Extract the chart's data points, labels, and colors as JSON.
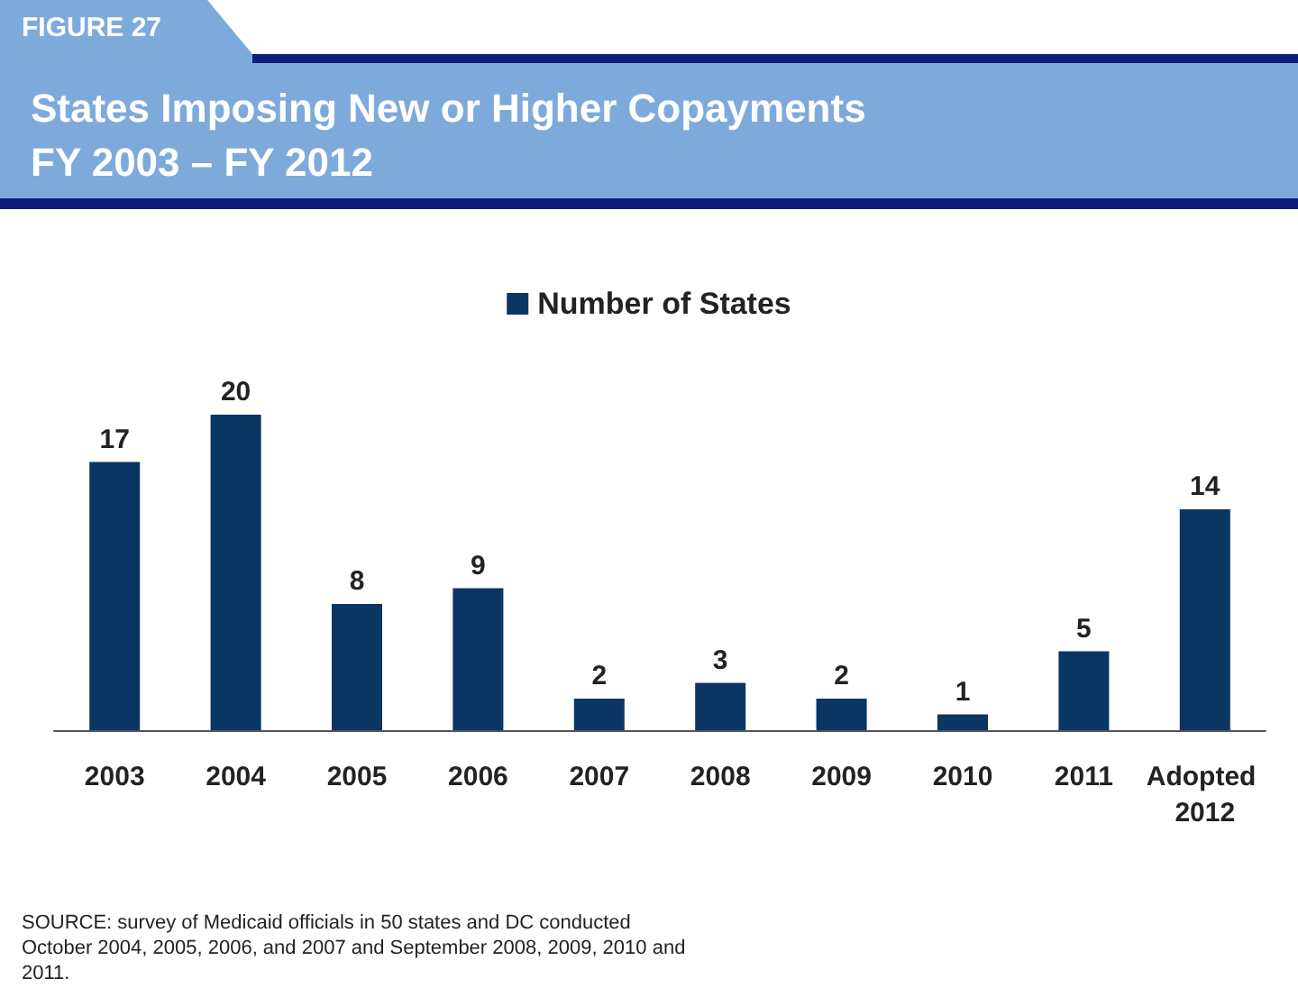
{
  "chart_data": {
    "type": "bar",
    "title": "States Imposing New or Higher Copayments",
    "subtitle": "FY 2003 – FY 2012",
    "categories": [
      "2003",
      "2004",
      "2005",
      "2006",
      "2007",
      "2008",
      "2009",
      "2010",
      "2011",
      "Adopted 2012"
    ],
    "series": [
      {
        "name": "Number of States",
        "color": "#0b3563",
        "values": [
          17,
          20,
          8,
          9,
          2,
          3,
          2,
          1,
          5,
          14
        ]
      }
    ],
    "data_labels": true,
    "legend": "top",
    "annotations": [
      "FIGURE 27",
      "SOURCE: survey of Medicaid officials in 50 states and DC conducted October 2004, 2005, 2006, and 2007 and September 2008, 2009, 2010 and 2011."
    ]
  }
}
